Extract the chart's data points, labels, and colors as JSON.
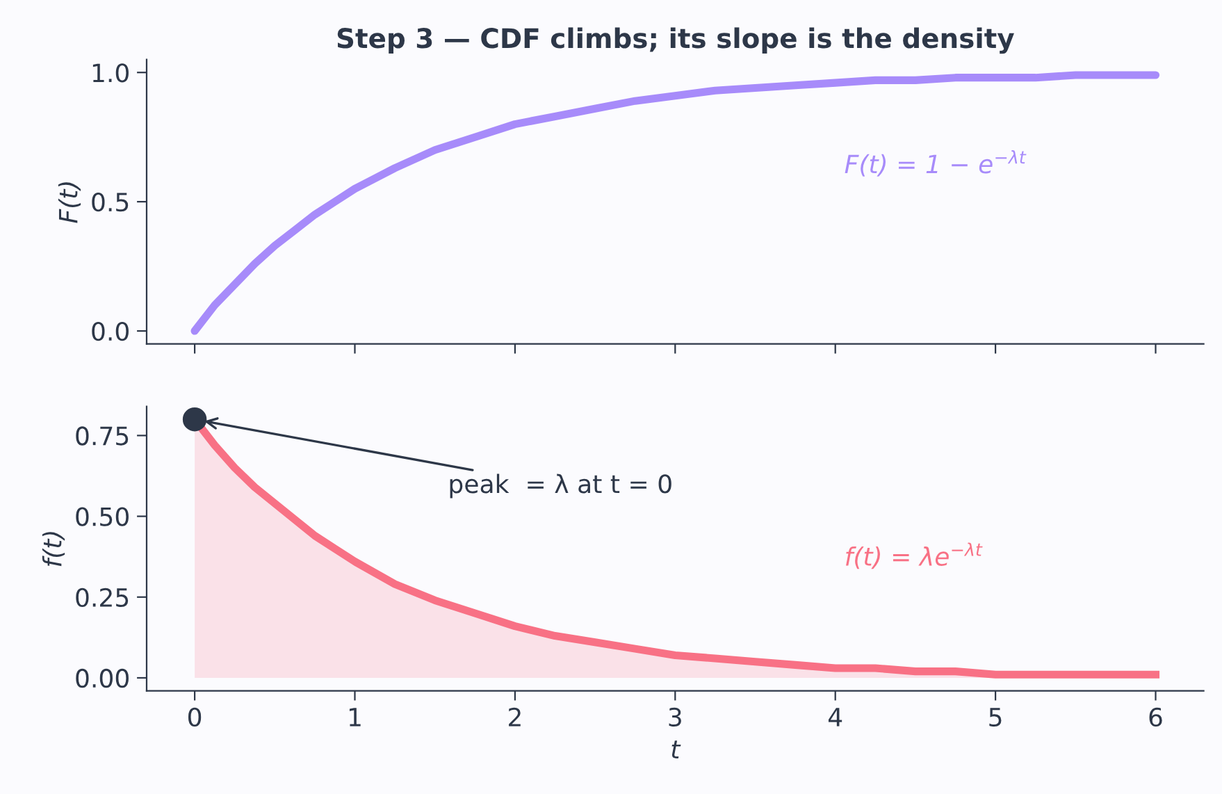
{
  "chart_data": [
    {
      "type": "line",
      "title": "Step 3 — CDF climbs; its slope is the density",
      "ylabel": "F(t)",
      "x": [
        0,
        0.125,
        0.25,
        0.375,
        0.5,
        0.625,
        0.75,
        0.875,
        1,
        1.25,
        1.5,
        1.75,
        2,
        2.25,
        2.5,
        2.75,
        3,
        3.25,
        3.5,
        3.75,
        4,
        4.25,
        4.5,
        4.75,
        5,
        5.25,
        5.5,
        5.75,
        6
      ],
      "series": [
        {
          "color": "#a78bfa",
          "values": [
            0,
            0.1,
            0.18,
            0.26,
            0.33,
            0.39,
            0.45,
            0.5,
            0.55,
            0.63,
            0.7,
            0.75,
            0.8,
            0.83,
            0.86,
            0.89,
            0.91,
            0.93,
            0.94,
            0.95,
            0.96,
            0.97,
            0.97,
            0.98,
            0.98,
            0.98,
            0.99,
            0.99,
            0.99
          ]
        }
      ],
      "annotations": [
        "F(t) = 1 − e$^{−λt}$"
      ],
      "xlim": [
        -0.3,
        6.3
      ],
      "ylim": [
        -0.05,
        1.05
      ],
      "yticks": [
        {
          "value": 0,
          "label": "0.0"
        },
        0.5,
        {
          "value": 1,
          "label": "1.0"
        }
      ],
      "tick_labels": "y",
      "grid": false,
      "legend": false
    },
    {
      "type": "area",
      "xlabel": "t",
      "ylabel": "f(t)",
      "x": [
        0,
        0.125,
        0.25,
        0.375,
        0.5,
        0.625,
        0.75,
        0.875,
        1,
        1.25,
        1.5,
        1.75,
        2,
        2.25,
        2.5,
        2.75,
        3,
        3.25,
        3.5,
        3.75,
        4,
        4.25,
        4.5,
        4.75,
        5,
        5.25,
        5.5,
        5.75,
        6
      ],
      "series": [
        {
          "color": "#f87185",
          "values": [
            0.8,
            0.72,
            0.65,
            0.59,
            0.54,
            0.49,
            0.44,
            0.4,
            0.36,
            0.29,
            0.24,
            0.2,
            0.16,
            0.13,
            0.11,
            0.09,
            0.07,
            0.06,
            0.05,
            0.04,
            0.03,
            0.03,
            0.02,
            0.02,
            0.01,
            0.01,
            0.01,
            0.01,
            0.01
          ]
        },
        {
          "type": "scatter",
          "color": "#2d3748",
          "x": [
            0
          ],
          "values": [
            0.8
          ]
        }
      ],
      "annotations": [
        {
          "text": "peak  = λ at t = 0",
          "x": 0,
          "y": 0.8
        },
        "f(t) = λe$^{−λt}$"
      ],
      "xlim": [
        -0.3,
        6.3
      ],
      "ylim": [
        -0.04,
        0.84
      ],
      "xticks": [
        0,
        1,
        2,
        3,
        4,
        5,
        6
      ],
      "yticks": [
        {
          "value": 0,
          "label": "0.00"
        },
        0.25,
        {
          "value": 0.5,
          "label": "0.50"
        },
        0.75
      ],
      "grid": false,
      "legend": false
    }
  ]
}
